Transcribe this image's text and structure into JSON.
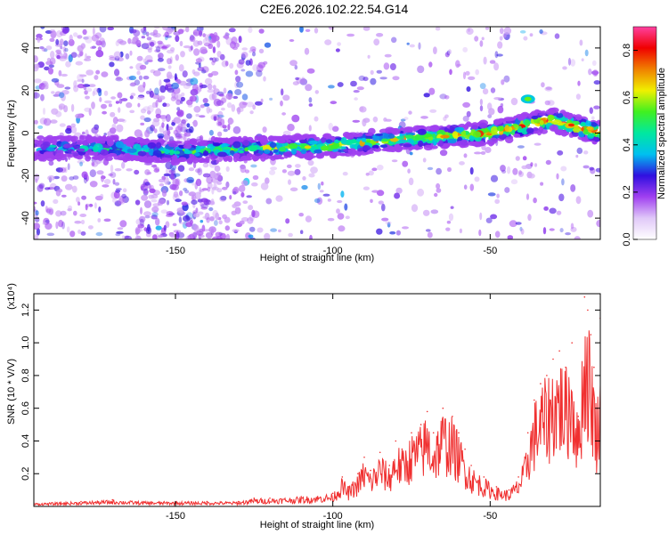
{
  "title": "C2E6.2026.102.22.54.G14",
  "chart_data": [
    {
      "type": "heatmap",
      "xlabel": "Height of straight line (km)",
      "ylabel": "Frequency (Hz)",
      "xlim": [
        -195,
        -15
      ],
      "ylim": [
        -50,
        50
      ],
      "xticks": [
        -150,
        -100,
        -50
      ],
      "yticks": [
        -40,
        -20,
        0,
        20,
        40
      ],
      "ridge": {
        "x": [
          -195,
          -170,
          -150,
          -140,
          -120,
          -100,
          -80,
          -60,
          -50,
          -40,
          -35,
          -30,
          -25,
          -20,
          -15
        ],
        "frequency": [
          -7,
          -7,
          -9,
          -8,
          -7,
          -6,
          -3,
          -1,
          0,
          3,
          5,
          6,
          4,
          2,
          0
        ]
      },
      "colorbar": {
        "label": "Normalized spectral amplitude",
        "range": [
          0,
          0.9
        ],
        "ticks": [
          0.0,
          0.2,
          0.4,
          0.6,
          0.8
        ],
        "colors": [
          "#ffffff",
          "#e0c8f8",
          "#a040f0",
          "#3010e0",
          "#00c0f0",
          "#00e8a0",
          "#40f020",
          "#f0f000",
          "#f08000",
          "#f00000",
          "#ff40a0"
        ]
      }
    },
    {
      "type": "line",
      "xlabel": "Height of straight line (km)",
      "ylabel": "SNR (10 * V/V)",
      "scale_label": "(x10⁴)",
      "xlim": [
        -195,
        -15
      ],
      "ylim": [
        0,
        1.3
      ],
      "xticks": [
        -150,
        -100,
        -50
      ],
      "yticks": [
        0.2,
        0.4,
        0.6,
        0.8,
        1.0,
        1.2
      ],
      "series": [
        {
          "name": "SNR",
          "color": "#f03030",
          "x": [
            -195,
            -180,
            -170,
            -160,
            -150,
            -140,
            -130,
            -125,
            -120,
            -110,
            -100,
            -97,
            -95,
            -92,
            -90,
            -88,
            -85,
            -82,
            -80,
            -78,
            -75,
            -72,
            -70,
            -68,
            -65,
            -62,
            -60,
            -58,
            -56,
            -52,
            -48,
            -44,
            -41,
            -39,
            -38,
            -36,
            -34,
            -32,
            -30,
            -28,
            -26,
            -24,
            -22,
            -20,
            -19,
            -18,
            -17,
            -16,
            -15
          ],
          "y": [
            0.02,
            0.03,
            0.04,
            0.03,
            0.03,
            0.03,
            0.03,
            0.05,
            0.05,
            0.06,
            0.08,
            0.18,
            0.12,
            0.2,
            0.3,
            0.22,
            0.33,
            0.25,
            0.4,
            0.35,
            0.45,
            0.5,
            0.58,
            0.45,
            0.6,
            0.55,
            0.45,
            0.35,
            0.25,
            0.18,
            0.12,
            0.1,
            0.18,
            0.3,
            0.45,
            0.65,
            0.75,
            0.8,
            0.9,
            0.95,
            0.85,
            1.0,
            0.55,
            1.28,
            1.2,
            1.05,
            0.85,
            0.6,
            1.15
          ]
        }
      ]
    }
  ]
}
